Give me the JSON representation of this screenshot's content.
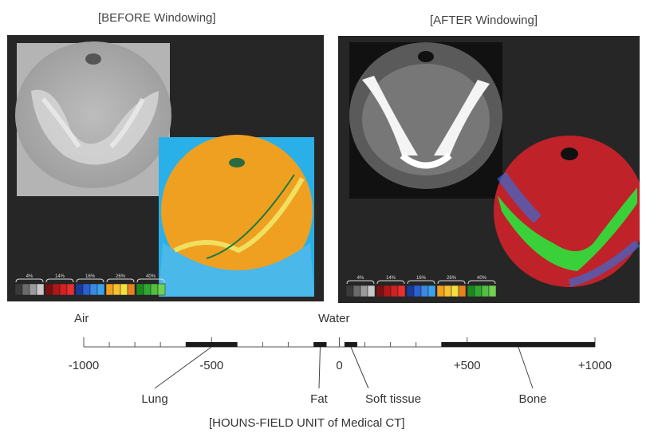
{
  "titles": {
    "before": "[BEFORE Windowing]",
    "after": "[AFTER Windowing]",
    "caption": "[HOUNS-FIELD UNIT of Medical CT]"
  },
  "legend": {
    "percent_labels": [
      "4%",
      "14%",
      "16%",
      "26%",
      "40%"
    ],
    "groups": [
      [
        "#3a3a3a",
        "#6a6a6a",
        "#9a9a9a",
        "#c8c8c8"
      ],
      [
        "#7a1010",
        "#b01818",
        "#d42020",
        "#e83030"
      ],
      [
        "#1a3aa0",
        "#2a60d0",
        "#3a8ae0",
        "#3aa0f0"
      ],
      [
        "#f0a020",
        "#f8c030",
        "#f0e040",
        "#e88020"
      ],
      [
        "#1a8a20",
        "#30a830",
        "#50c040",
        "#70d050"
      ]
    ]
  },
  "hu_scale": {
    "range_labels": {
      "air": "Air",
      "water": "Water"
    },
    "tick_labels": [
      "-1000",
      "-500",
      "0",
      "+500",
      "+1000"
    ],
    "tissues": [
      {
        "name": "Lung",
        "min": -600,
        "max": -400
      },
      {
        "name": "Fat",
        "min": -100,
        "max": -50
      },
      {
        "name": "Soft tissue",
        "min": 20,
        "max": 70
      },
      {
        "name": "Bone",
        "min": 400,
        "max": 1000
      }
    ]
  },
  "colors": {
    "panel_bg": "#262626",
    "before_overlay": "#f0a020",
    "before_bg": "#2ab0e8",
    "after_red": "#c0222a",
    "after_green": "#3ad03a"
  }
}
